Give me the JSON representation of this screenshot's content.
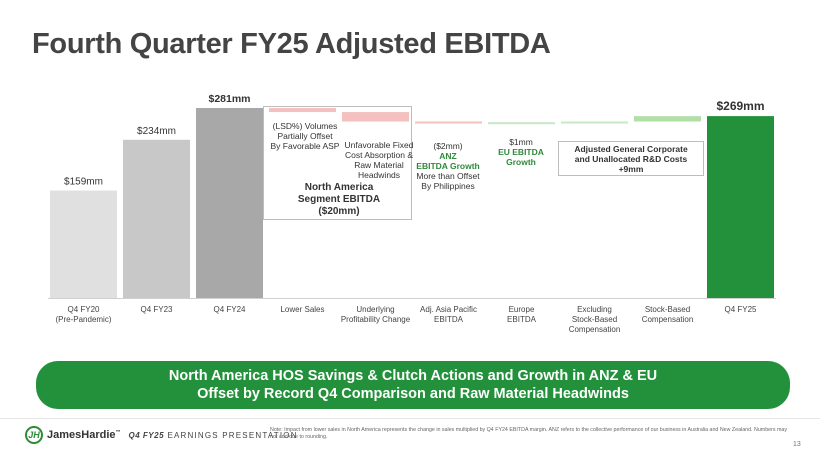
{
  "title": "Fourth Quarter FY25 Adjusted EBITDA",
  "chart_data": {
    "type": "bar",
    "subtype": "waterfall",
    "unit": "$mm",
    "categories": [
      "Q4 FY20\n(Pre-Pandemic)",
      "Q4 FY23",
      "Q4 FY24",
      "Lower Sales",
      "Underlying\nProfitability Change",
      "Adj. Asia Pacific\nEBITDA",
      "Europe\nEBITDA",
      "Excluding\nStock-Based\nCompensation",
      "Stock-Based\nCompensation",
      "Q4 FY25"
    ],
    "bars": [
      {
        "kind": "total",
        "start": 0,
        "end": 159,
        "label": "$159mm",
        "color": "#e0e0e0"
      },
      {
        "kind": "total",
        "start": 0,
        "end": 234,
        "label": "$234mm",
        "color": "#c8c8c8"
      },
      {
        "kind": "total",
        "start": 0,
        "end": 281,
        "label": "$281mm",
        "color": "#a8a8a8"
      },
      {
        "kind": "decrease",
        "start": 281,
        "end": 275,
        "label": "",
        "color": "#f4c0c0"
      },
      {
        "kind": "decrease",
        "start": 275,
        "end": 261,
        "label": "",
        "color": "#f4c0c0"
      },
      {
        "kind": "decrease",
        "start": 261,
        "end": 259,
        "label": "",
        "color": "#f4c0c0"
      },
      {
        "kind": "increase",
        "start": 259,
        "end": 260,
        "label": "",
        "color": "#c6e8c6"
      },
      {
        "kind": "increase",
        "start": 260,
        "end": 261,
        "label": "",
        "color": "#c6e8c6"
      },
      {
        "kind": "increase",
        "start": 261,
        "end": 269,
        "label": "",
        "color": "#b2dea8"
      },
      {
        "kind": "total",
        "start": 0,
        "end": 269,
        "label": "$269mm",
        "color": "#23913c"
      }
    ],
    "ylim": [
      0,
      281
    ]
  },
  "annotations": {
    "lower_sales": "(LSD%) Volumes\nPartially Offset\nBy Favorable ASP",
    "underlying": "Unfavorable Fixed\nCost Absorption &\nRaw Material\nHeadwinds",
    "na_segment": "North America\nSegment EBITDA\n($20mm)",
    "apac_value": "($2mm)",
    "apac_green": "ANZ\nEBITDA Growth",
    "apac_rest": "More than Offset\nBy Philippines",
    "europe_value": "$1mm",
    "europe_green": "EU EBITDA\nGrowth",
    "corporate": "Adjusted General Corporate\nand Unallocated R&D Costs\n+9mm"
  },
  "banner": {
    "line1": "North America HOS Savings & Clutch Actions and Growth in ANZ & EU",
    "line2": "Offset by Record Q4 Comparison and Raw Material Headwinds"
  },
  "footer": {
    "logo_mark": "JH",
    "brand": "JamesHardie",
    "tm": "™",
    "period": "Q4 FY25",
    "subtitle": "EARNINGS PRESENTATION",
    "note": "Note: Impact from lower sales in North America represents the change in sales multiplied by Q4 FY24 EBITDA margin. ANZ refers to the collective performance of our business in Australia and New Zealand. Numbers may not add due to rounding.",
    "page": "13"
  }
}
